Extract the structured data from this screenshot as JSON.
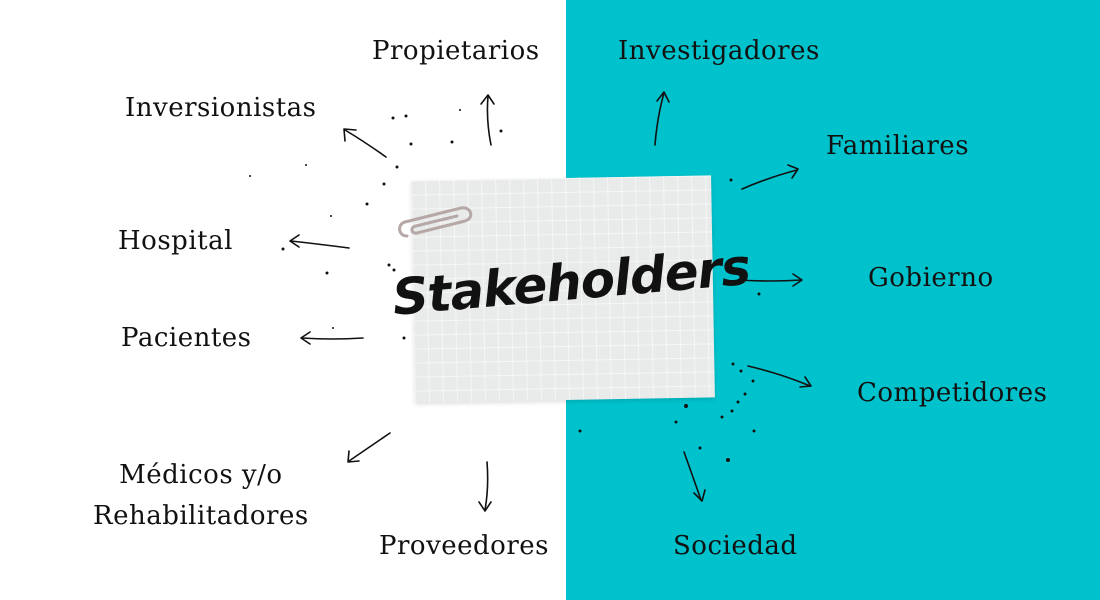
{
  "title": "Stakeholders",
  "colors": {
    "panel": "#00c2cc",
    "note": "#e8ebe9",
    "ink": "#111111"
  },
  "icons": [
    "paperclip-icon",
    "arrow-icon"
  ],
  "stakeholders": {
    "propietarios": "Propietarios",
    "investigadores": "Investigadores",
    "inversionistas": "Inversionistas",
    "familiares": "Familiares",
    "hospital": "Hospital",
    "gobierno": "Gobierno",
    "pacientes": "Pacientes",
    "competidores": "Competidores",
    "medicos": "Médicos y/o\nRehabilitadores",
    "proveedores": "Proveedores",
    "sociedad": "Sociedad"
  }
}
